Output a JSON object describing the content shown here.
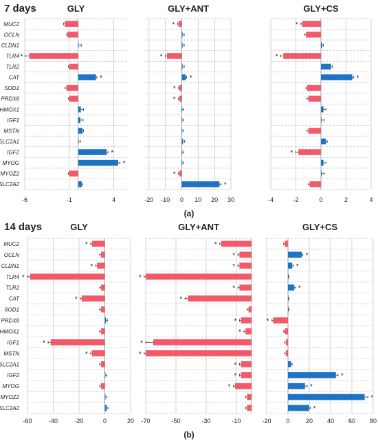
{
  "colors": {
    "positive": "#1f73c4",
    "negative": "#f25a6a",
    "grid": "#c8c8c8",
    "dash": "#bdbdbd",
    "text": "#222222"
  },
  "genes": [
    "MUC2",
    "OCLN",
    "CLDN1",
    "TLR4",
    "TLR2",
    "CAT",
    "SOD1",
    "PRDX6",
    "HMOX1",
    "IGF1",
    "MSTN",
    "SLC2A1",
    "IGF2",
    "MYOG",
    "MYOZ2",
    "SLC2A2"
  ],
  "star": "*",
  "chart_data": [
    {
      "type": "bar",
      "orientation": "horizontal",
      "block_label": "7 days",
      "panel_caption": "(a)",
      "panels": [
        {
          "title": "GLY",
          "xlim": [
            -6,
            5.5
          ],
          "ticks": [
            -6,
            -1,
            4
          ],
          "values": [
            -1.5,
            -1.2,
            0.05,
            -5.5,
            -1.0,
            2.0,
            -1.3,
            -1.0,
            0.3,
            0.25,
            0.5,
            0.05,
            3.2,
            4.5,
            -1.0,
            0.4
          ],
          "errors": [
            0.15,
            0.1,
            0.3,
            0.4,
            0.1,
            0.1,
            0.15,
            0.1,
            0.3,
            0.3,
            0.1,
            0.2,
            0.15,
            0.2,
            0.1,
            0.1
          ],
          "significant": [
            false,
            false,
            false,
            true,
            false,
            true,
            false,
            false,
            false,
            false,
            false,
            false,
            true,
            true,
            false,
            false
          ]
        },
        {
          "title": "GLY+ANT",
          "xlim": [
            -22,
            30
          ],
          "ticks": [
            -20,
            -10,
            0,
            10,
            20,
            30
          ],
          "values": [
            -2.0,
            0.5,
            0.5,
            -9.0,
            0.5,
            2.5,
            -1.5,
            -1.5,
            0.2,
            0.2,
            0.2,
            0.8,
            0.2,
            0.2,
            -1.5,
            23.0
          ],
          "errors": [
            0.5,
            1.0,
            1.0,
            1.0,
            1.0,
            0.5,
            0.5,
            0.5,
            1.0,
            1.0,
            1.0,
            1.0,
            1.0,
            1.0,
            0.5,
            1.0
          ],
          "significant": [
            true,
            false,
            false,
            true,
            false,
            true,
            true,
            true,
            false,
            false,
            false,
            false,
            false,
            false,
            true,
            true
          ]
        },
        {
          "title": "GLY+CS",
          "xlim": [
            -4,
            4
          ],
          "ticks": [
            -4,
            -2,
            0,
            2,
            4
          ],
          "values": [
            -1.5,
            -1.2,
            0.1,
            -3.0,
            0.8,
            2.5,
            -1.1,
            -1.0,
            0.2,
            0.05,
            -1.0,
            0.4,
            -1.8,
            0.2,
            0.05,
            -0.9
          ],
          "errors": [
            0.1,
            0.1,
            0.1,
            0.2,
            0.1,
            0.1,
            0.1,
            0.1,
            0.2,
            0.2,
            0.1,
            0.1,
            0.2,
            0.2,
            0.2,
            0.1
          ],
          "significant": [
            true,
            false,
            false,
            true,
            false,
            true,
            false,
            false,
            false,
            false,
            false,
            false,
            true,
            false,
            false,
            false
          ]
        }
      ]
    },
    {
      "type": "bar",
      "orientation": "horizontal",
      "block_label": "14 days",
      "panel_caption": "(b)",
      "panels": [
        {
          "title": "GLY",
          "xlim": [
            -60,
            20
          ],
          "ticks": [
            -60,
            -40,
            -20,
            0,
            20
          ],
          "values": [
            -10,
            -3,
            -6,
            -58,
            -3,
            -18,
            -3,
            1,
            -3,
            -42,
            -10,
            -3,
            0.5,
            -3,
            0.5,
            1.5
          ],
          "errors": [
            1,
            1,
            1,
            2,
            1,
            1,
            1,
            1,
            1,
            2,
            1,
            1,
            1,
            1,
            1,
            1
          ],
          "significant": [
            true,
            false,
            true,
            true,
            false,
            true,
            false,
            false,
            false,
            true,
            true,
            false,
            false,
            false,
            false,
            false
          ]
        },
        {
          "title": "GLY+ANT",
          "xlim": [
            -70,
            0
          ],
          "ticks": [
            -70,
            -50,
            -30,
            -10
          ],
          "values": [
            -20,
            -8,
            -8,
            -70,
            -8,
            -42,
            -2,
            -7,
            -4,
            -65,
            -70,
            -7,
            -7,
            -11,
            -3,
            -3
          ],
          "errors": [
            1,
            1,
            1,
            1,
            1,
            2,
            1,
            1,
            1,
            5,
            1,
            1,
            1,
            1,
            1,
            1
          ],
          "significant": [
            true,
            true,
            true,
            true,
            true,
            true,
            false,
            true,
            true,
            true,
            true,
            true,
            true,
            true,
            false,
            false
          ]
        },
        {
          "title": "GLY+CS",
          "xlim": [
            -20,
            80
          ],
          "ticks": [
            -20,
            0,
            20,
            40,
            60,
            80
          ],
          "values": [
            -3,
            13,
            4,
            0,
            6,
            0,
            0,
            -14,
            -3,
            -2,
            -2,
            3,
            45,
            16,
            72,
            20
          ],
          "errors": [
            1,
            1,
            1,
            1,
            1,
            1,
            1,
            1,
            1,
            1,
            1,
            1,
            2,
            2,
            3,
            1
          ],
          "significant": [
            false,
            true,
            true,
            false,
            true,
            false,
            false,
            true,
            false,
            false,
            false,
            false,
            true,
            true,
            true,
            true
          ]
        }
      ]
    }
  ]
}
